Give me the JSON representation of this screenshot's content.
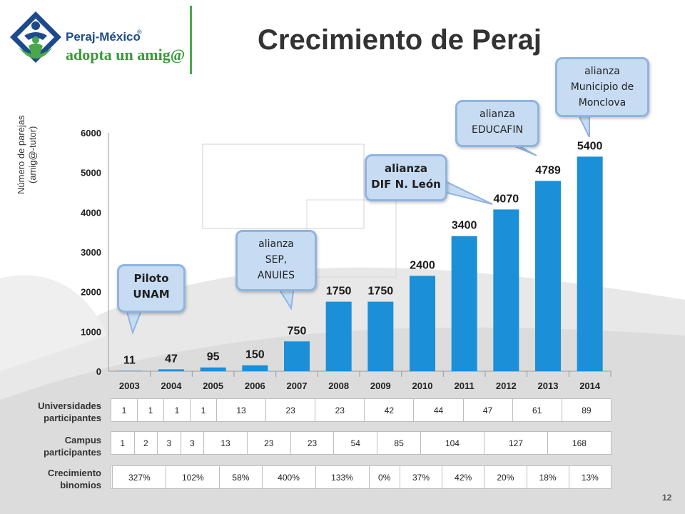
{
  "header": {
    "brand": "Peraj-México",
    "registered": "®",
    "tagline": "adopta un amig@",
    "title": "Crecimiento de Peraj"
  },
  "colors": {
    "bar": "#1b8fd8",
    "accent_green": "#4aa84a",
    "callout_fill": "#c7dcf2",
    "callout_border": "#8fb4e0"
  },
  "chart_data": {
    "type": "bar",
    "title": "Crecimiento de Peraj",
    "xlabel": "",
    "ylabel": "Número de parejas (amig@-tutor)",
    "ylim": [
      0,
      6000
    ],
    "yticks": [
      0,
      1000,
      2000,
      3000,
      4000,
      5000,
      6000
    ],
    "grid": false,
    "categories": [
      "2003",
      "2004",
      "2005",
      "2006",
      "2007",
      "2008",
      "2009",
      "2010",
      "2011",
      "2012",
      "2013",
      "2014"
    ],
    "values": [
      11,
      47,
      95,
      150,
      750,
      1750,
      1750,
      2400,
      3400,
      4070,
      4789,
      5400
    ],
    "data_labels": [
      "11",
      "47",
      "95",
      "150",
      "750",
      "1750",
      "1750",
      "2400",
      "3400",
      "4070",
      "4789",
      "5400"
    ],
    "annotations": [
      {
        "text": "Piloto\nUNAM",
        "year": "2003"
      },
      {
        "text": "alianza\nSEP,\nANUIES",
        "year": "2007"
      },
      {
        "text": "alianza\nDIF N. León",
        "year": "2012"
      },
      {
        "text": "alianza\nEDUCAFIN",
        "year": "2013"
      },
      {
        "text": "alianza\nMunicipio de\nMonclova",
        "year": "2014"
      }
    ]
  },
  "table": {
    "rows": [
      {
        "label": "Universidades\nparticipantes",
        "cells": [
          "1",
          "1",
          "1",
          "1",
          "13",
          "23",
          "23",
          "42",
          "44",
          "47",
          "61",
          "89"
        ]
      },
      {
        "label": "Campus\nparticipantes",
        "cells": [
          "1",
          "2",
          "3",
          "3",
          "13",
          "23",
          "23",
          "54",
          "85",
          "104",
          "127",
          "168"
        ]
      },
      {
        "label": "Crecimiento\nbinomios",
        "cells": [
          "",
          "327%",
          "102%",
          "58%",
          "400%",
          "133%",
          "0%",
          "37%",
          "42%",
          "20%",
          "18%",
          "13%"
        ]
      }
    ]
  },
  "page_number": "12"
}
